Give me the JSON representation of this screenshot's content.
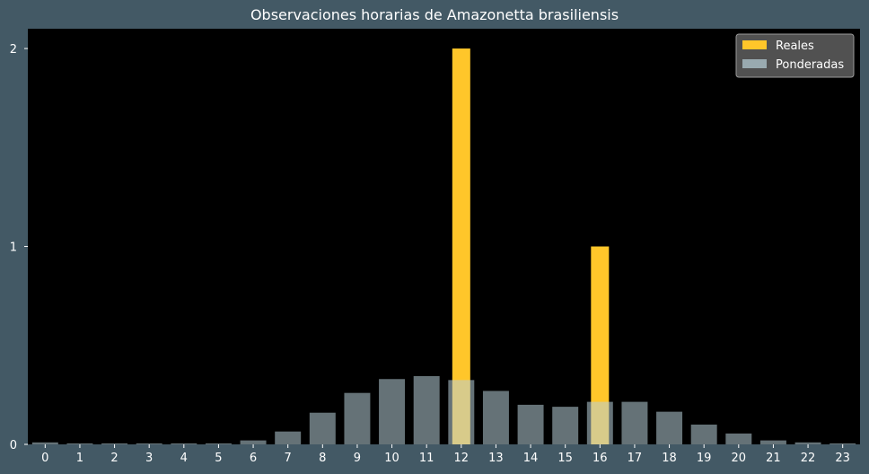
{
  "chart_data": {
    "type": "bar",
    "title": "Observaciones horarias de Amazonetta brasiliensis",
    "xlabel": "",
    "ylabel": "",
    "categories": [
      "0",
      "1",
      "2",
      "3",
      "4",
      "5",
      "6",
      "7",
      "8",
      "9",
      "10",
      "11",
      "12",
      "13",
      "14",
      "15",
      "16",
      "17",
      "18",
      "19",
      "20",
      "21",
      "22",
      "23"
    ],
    "ylim": [
      0,
      2.1
    ],
    "yticks": [
      0,
      1,
      2
    ],
    "legend_position": "top-right",
    "grid": false,
    "series": [
      {
        "name": "Reales",
        "color": "#ffc62a",
        "values": [
          0,
          0,
          0,
          0,
          0,
          0,
          0,
          0,
          0,
          0,
          0,
          0,
          2,
          0,
          0,
          0,
          1,
          0,
          0,
          0,
          0,
          0,
          0,
          0
        ]
      },
      {
        "name": "Ponderadas",
        "color": "#b8d0d8",
        "values": [
          0.01,
          0.005,
          0.005,
          0.005,
          0.005,
          0.005,
          0.02,
          0.065,
          0.16,
          0.26,
          0.33,
          0.345,
          0.325,
          0.27,
          0.2,
          0.19,
          0.215,
          0.215,
          0.165,
          0.1,
          0.055,
          0.02,
          0.01,
          0.005
        ]
      }
    ]
  }
}
